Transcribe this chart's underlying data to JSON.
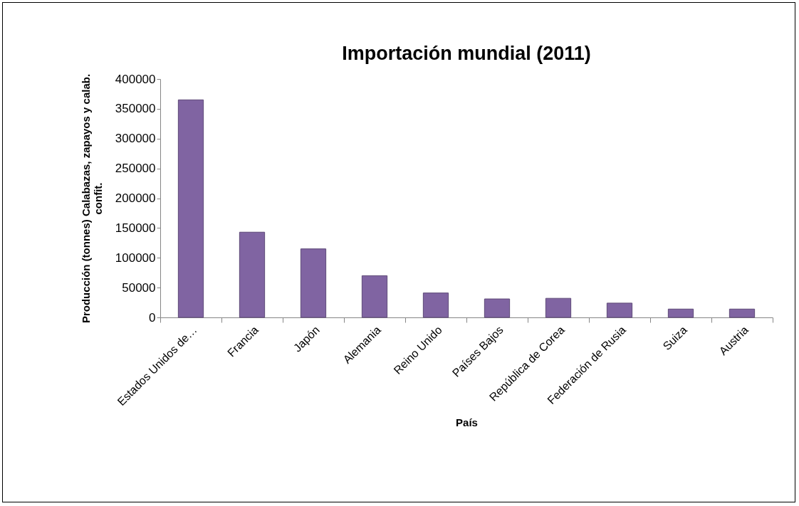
{
  "chart_data": {
    "type": "bar",
    "title": "Importación mundial (2011)",
    "xlabel": "País",
    "ylabel": "Producción (tonnes) Calabazas, zapayos y calab. confit.",
    "categories": [
      "Estados Unidos de…",
      "Francia",
      "Japón",
      "Alemania",
      "Reino Unido",
      "Países Bajos",
      "República de Corea",
      "Federación de Rusia",
      "Suiza",
      "Austria"
    ],
    "values": [
      365000,
      143000,
      115000,
      70000,
      41000,
      31000,
      32000,
      24000,
      14000,
      14000
    ],
    "color": "#8064a2",
    "ylim": [
      0,
      400000
    ],
    "yticks": [
      0,
      50000,
      100000,
      150000,
      200000,
      250000,
      300000,
      350000,
      400000
    ],
    "grid": false
  }
}
